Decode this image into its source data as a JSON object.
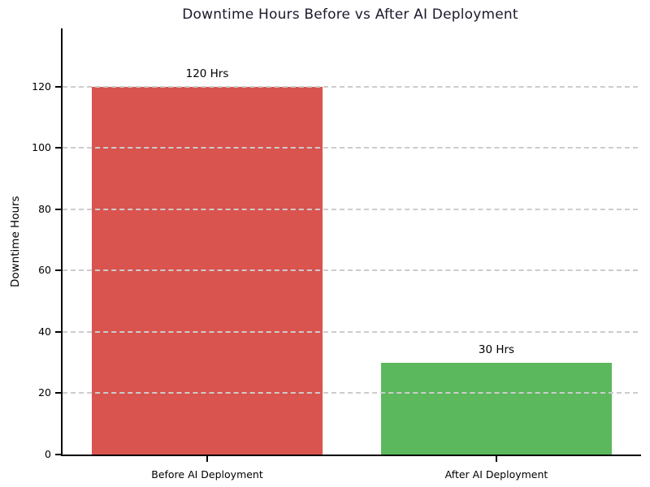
{
  "chart_data": {
    "type": "bar",
    "title": "Downtime Hours Before vs After AI Deployment",
    "categories": [
      "Before AI Deployment",
      "After AI Deployment"
    ],
    "values": [
      120,
      30
    ],
    "bar_labels": [
      "120 Hrs",
      "30 Hrs"
    ],
    "bar_colors": [
      "#d9534f",
      "#5cb85c"
    ],
    "xlabel": "",
    "ylabel": "Downtime Hours",
    "ylim": [
      0,
      139
    ],
    "yticks": [
      0,
      20,
      40,
      60,
      80,
      100,
      120
    ],
    "grid": {
      "horizontal": true,
      "style": "dashed",
      "color": "#cccccc",
      "drawn_over_bars": true
    },
    "legend": "none",
    "title_color": "#1a1a2e",
    "text_color": "#000000",
    "background": "#ffffff"
  }
}
